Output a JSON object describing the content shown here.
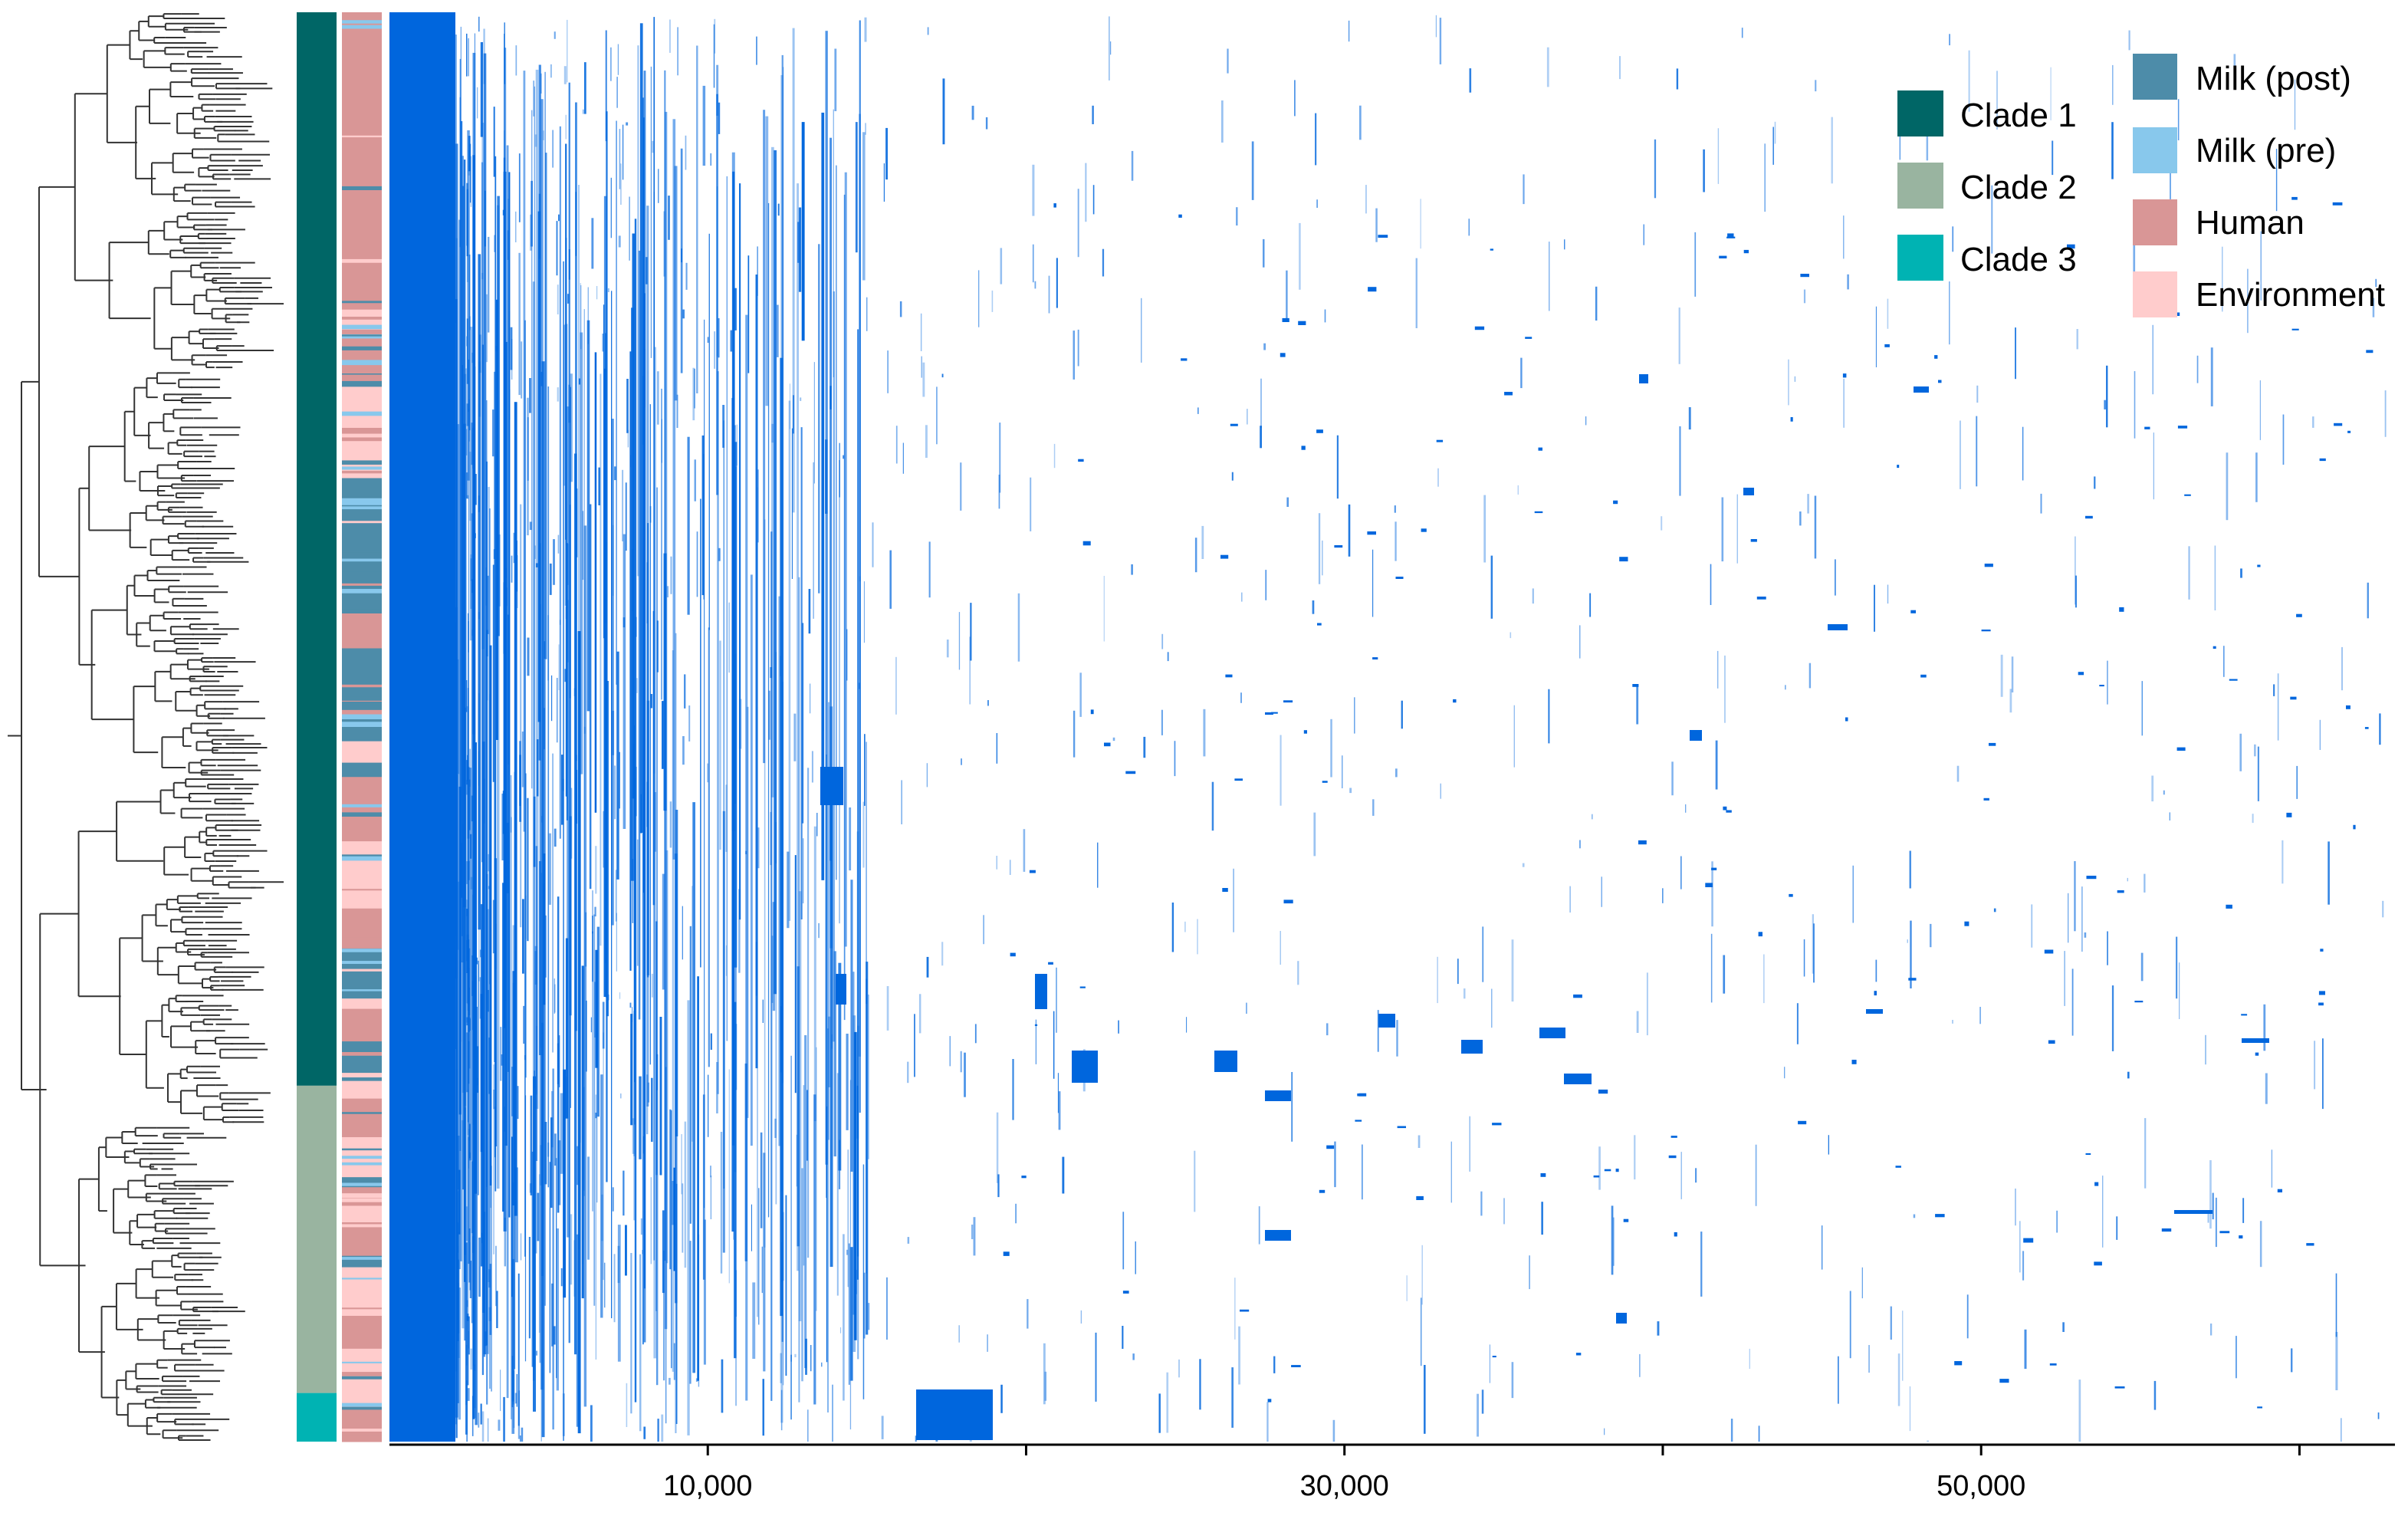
{
  "legend_clades": {
    "items": [
      {
        "label": "Clade 1",
        "color": "#006666"
      },
      {
        "label": "Clade 2",
        "color": "#99b4a0"
      },
      {
        "label": "Clade 3",
        "color": "#00b3b3"
      }
    ]
  },
  "legend_sources": {
    "items": [
      {
        "label": "Milk (post)",
        "color": "#4d8ca9"
      },
      {
        "label": "Milk (pre)",
        "color": "#88c8ec"
      },
      {
        "label": "Human",
        "color": "#d99696"
      },
      {
        "label": "Environment",
        "color": "#ffcccc"
      }
    ]
  },
  "x_axis": {
    "min": 0,
    "max": 63000,
    "ticks": [
      {
        "value": 10000,
        "label": "10,000"
      },
      {
        "value": 20000,
        "label": ""
      },
      {
        "value": 30000,
        "label": "30,000"
      },
      {
        "value": 40000,
        "label": ""
      },
      {
        "value": 50000,
        "label": "50,000"
      },
      {
        "value": 60000,
        "label": ""
      }
    ]
  },
  "clade_bar": [
    {
      "clade": "Clade 1",
      "from": 0.0,
      "to": 0.751
    },
    {
      "clade": "Clade 2",
      "from": 0.751,
      "to": 0.966
    },
    {
      "clade": "Clade 3",
      "from": 0.966,
      "to": 1.0
    }
  ],
  "heatmap_color": "#0066dd"
}
